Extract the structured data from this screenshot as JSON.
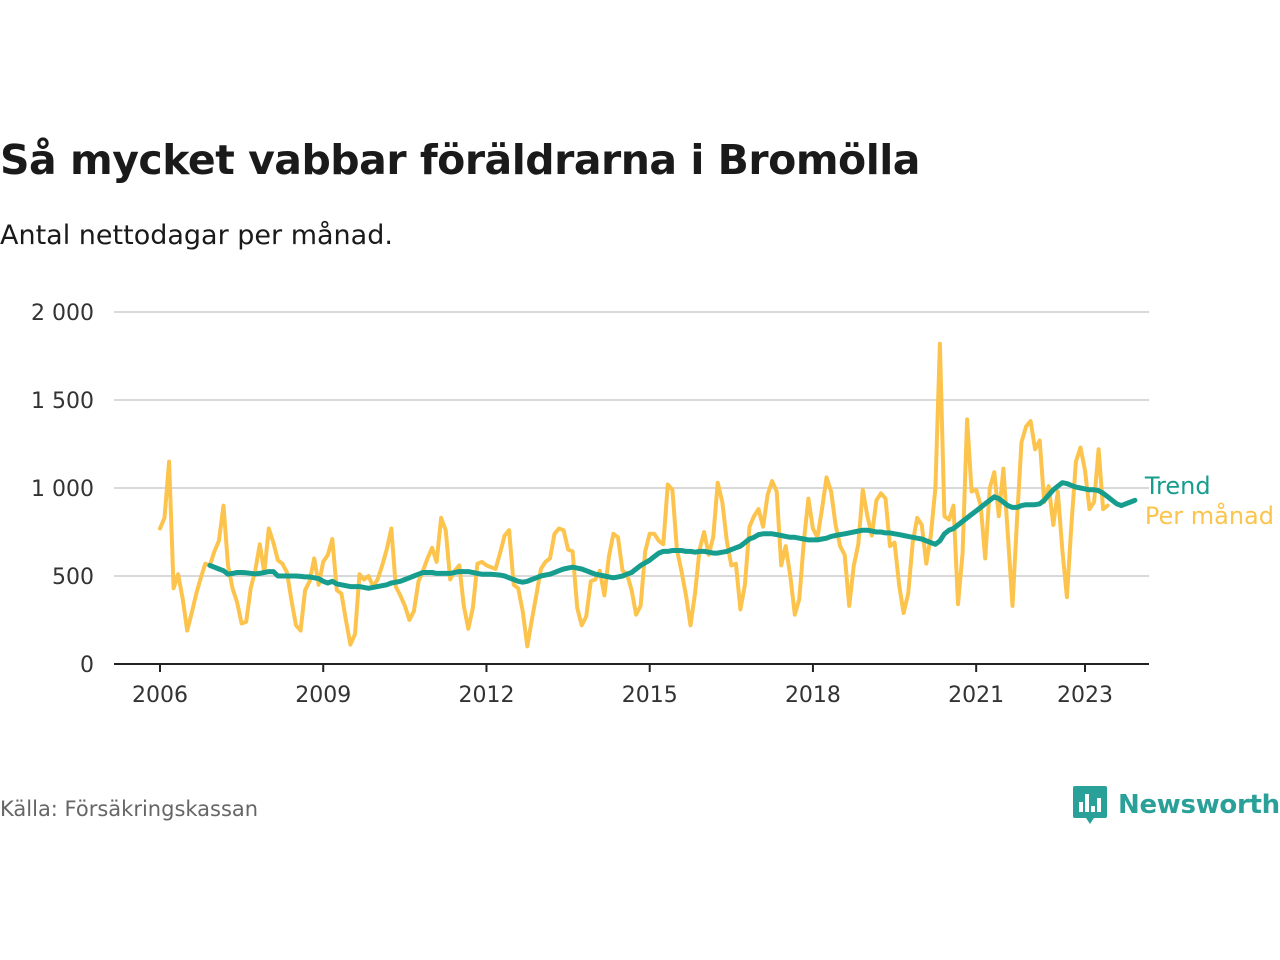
{
  "title": "Så mycket vabbar föräldrarna i Bromölla",
  "subtitle": "Antal nettodagar per månad.",
  "source": "Källa: Försäkringskassan",
  "brand": {
    "name": "Newsworthy",
    "icon": "newsworthy-chart-bubble-icon",
    "color": "#2aa198"
  },
  "colors": {
    "trend": "#169d8e",
    "monthly": "#fcc44d",
    "grid": "#d9d9d9",
    "axis": "#222222"
  },
  "chart_data": {
    "type": "line",
    "x_unit": "year",
    "x_ticks": [
      2006,
      2009,
      2012,
      2015,
      2018,
      2021,
      2023
    ],
    "x_tick_labels": [
      "2006",
      "2009",
      "2012",
      "2015",
      "2018",
      "2021",
      "2023"
    ],
    "ylim": [
      0,
      2000
    ],
    "y_ticks": [
      0,
      500,
      1000,
      1500,
      2000
    ],
    "y_tick_labels": [
      "0",
      "500",
      "1 000",
      "1 500",
      "2 000"
    ],
    "grid": true,
    "legend": "inline-right",
    "series": [
      {
        "name": "Per månad",
        "key": "monthly",
        "x_start": 2006.0,
        "x_step_months": 1,
        "values": [
          770,
          830,
          1150,
          430,
          510,
          370,
          190,
          290,
          400,
          490,
          570,
          560,
          640,
          700,
          900,
          560,
          430,
          350,
          230,
          240,
          430,
          530,
          680,
          520,
          770,
          690,
          590,
          570,
          520,
          360,
          220,
          190,
          420,
          470,
          600,
          450,
          580,
          620,
          710,
          420,
          400,
          250,
          110,
          170,
          510,
          480,
          500,
          440,
          480,
          560,
          650,
          770,
          440,
          390,
          330,
          250,
          300,
          470,
          530,
          600,
          660,
          580,
          830,
          760,
          480,
          530,
          560,
          330,
          200,
          320,
          570,
          580,
          560,
          550,
          540,
          630,
          730,
          760,
          450,
          430,
          300,
          100,
          250,
          390,
          540,
          580,
          600,
          740,
          770,
          760,
          650,
          640,
          320,
          220,
          270,
          470,
          480,
          530,
          390,
          610,
          740,
          720,
          530,
          510,
          420,
          280,
          330,
          640,
          740,
          740,
          700,
          680,
          1020,
          990,
          650,
          530,
          390,
          220,
          400,
          650,
          750,
          620,
          720,
          1030,
          920,
          700,
          560,
          570,
          310,
          450,
          780,
          840,
          880,
          780,
          960,
          1040,
          980,
          560,
          670,
          500,
          280,
          370,
          700,
          940,
          770,
          720,
          880,
          1060,
          980,
          790,
          670,
          620,
          330,
          560,
          680,
          990,
          840,
          730,
          930,
          970,
          940,
          670,
          690,
          450,
          290,
          400,
          690,
          830,
          790,
          570,
          730,
          1000,
          1820,
          840,
          820,
          900,
          340,
          630,
          1390,
          980,
          990,
          900,
          600,
          1000,
          1090,
          840,
          1110,
          730,
          330,
          820,
          1260,
          1350,
          1380,
          1220,
          1270,
          920,
          1010,
          790,
          980,
          650,
          380,
          790,
          1150,
          1230,
          1100,
          880,
          920,
          1220,
          880,
          900
        ]
      },
      {
        "name": "Trend",
        "key": "trend",
        "x_start": 2006.9167,
        "x_step_months": 1,
        "values": [
          560,
          550,
          540,
          530,
          510,
          515,
          520,
          520,
          518,
          515,
          512,
          515,
          520,
          525,
          525,
          500,
          500,
          500,
          500,
          500,
          498,
          495,
          495,
          490,
          485,
          470,
          460,
          470,
          455,
          450,
          445,
          440,
          440,
          440,
          435,
          430,
          435,
          440,
          445,
          450,
          460,
          465,
          470,
          480,
          490,
          500,
          510,
          520,
          520,
          520,
          515,
          515,
          515,
          515,
          520,
          525,
          525,
          525,
          520,
          515,
          510,
          510,
          510,
          508,
          505,
          500,
          490,
          480,
          470,
          465,
          470,
          480,
          490,
          500,
          505,
          510,
          520,
          530,
          540,
          545,
          550,
          545,
          540,
          530,
          520,
          510,
          505,
          500,
          495,
          490,
          495,
          500,
          510,
          520,
          540,
          560,
          575,
          590,
          610,
          630,
          640,
          640,
          645,
          645,
          645,
          640,
          640,
          635,
          640,
          640,
          635,
          630,
          630,
          635,
          640,
          650,
          660,
          670,
          690,
          710,
          720,
          735,
          740,
          740,
          740,
          735,
          730,
          725,
          720,
          720,
          715,
          710,
          705,
          705,
          705,
          710,
          715,
          725,
          730,
          735,
          740,
          745,
          750,
          755,
          760,
          760,
          755,
          750,
          750,
          745,
          745,
          740,
          735,
          730,
          725,
          720,
          715,
          710,
          700,
          690,
          680,
          700,
          740,
          760,
          770,
          790,
          810,
          830,
          850,
          870,
          890,
          910,
          930,
          950,
          940,
          920,
          900,
          890,
          890,
          900,
          905,
          905,
          905,
          910,
          930,
          960,
          990,
          1010,
          1030,
          1025,
          1015,
          1005,
          1000,
          995,
          990,
          990,
          985,
          970,
          950,
          930,
          910,
          900,
          910,
          920,
          930
        ]
      }
    ]
  }
}
